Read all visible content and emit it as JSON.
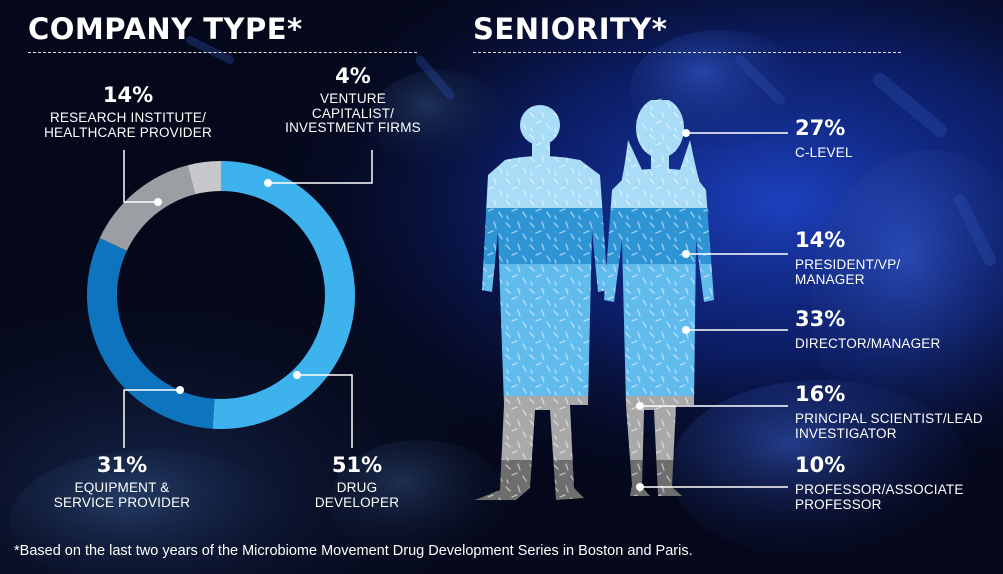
{
  "company": {
    "title": "COMPANY TYPE*",
    "chart_data": {
      "type": "pie",
      "title": "COMPANY TYPE*",
      "slices": [
        {
          "value": 51,
          "pct_label": "51%",
          "label_lines": [
            "DRUG",
            "DEVELOPER"
          ],
          "color": "#3db2ec"
        },
        {
          "value": 31,
          "pct_label": "31%",
          "label_lines": [
            "EQUIPMENT &",
            "SERVICE PROVIDER"
          ],
          "color": "#0e74bd"
        },
        {
          "value": 14,
          "pct_label": "14%",
          "label_lines": [
            "RESEARCH INSTITUTE/",
            "HEALTHCARE PROVIDER"
          ],
          "color": "#9b9ea3"
        },
        {
          "value": 4,
          "pct_label": "4%",
          "label_lines": [
            "VENTURE",
            "CAPITALIST/",
            "INVESTMENT FIRMS"
          ],
          "color": "#c6c7ca"
        }
      ]
    }
  },
  "seniority": {
    "title": "SENIORITY*",
    "chart_data": {
      "type": "bar",
      "title": "SENIORITY*",
      "stacked": true,
      "orientation": "vertical",
      "segments": [
        {
          "value": 27,
          "pct_label": "27%",
          "label_lines": [
            "C-LEVEL"
          ],
          "color": "#a9dcf6"
        },
        {
          "value": 14,
          "pct_label": "14%",
          "label_lines": [
            "PRESIDENT/VP/",
            "MANAGER"
          ],
          "color": "#2f94d4"
        },
        {
          "value": 33,
          "pct_label": "33%",
          "label_lines": [
            "DIRECTOR/MANAGER"
          ],
          "color": "#62bbed"
        },
        {
          "value": 16,
          "pct_label": "16%",
          "label_lines": [
            "PRINCIPAL SCIENTIST/LEAD",
            "INVESTIGATOR"
          ],
          "color": "#a9a9a9"
        },
        {
          "value": 10,
          "pct_label": "10%",
          "label_lines": [
            "PROFESSOR/ASSOCIATE",
            "PROFESSOR"
          ],
          "color": "#6e6e6e"
        }
      ]
    }
  },
  "footnote": "*Based on the last two years of the Microbiome Movement Drug Development Series in Boston and Paris."
}
